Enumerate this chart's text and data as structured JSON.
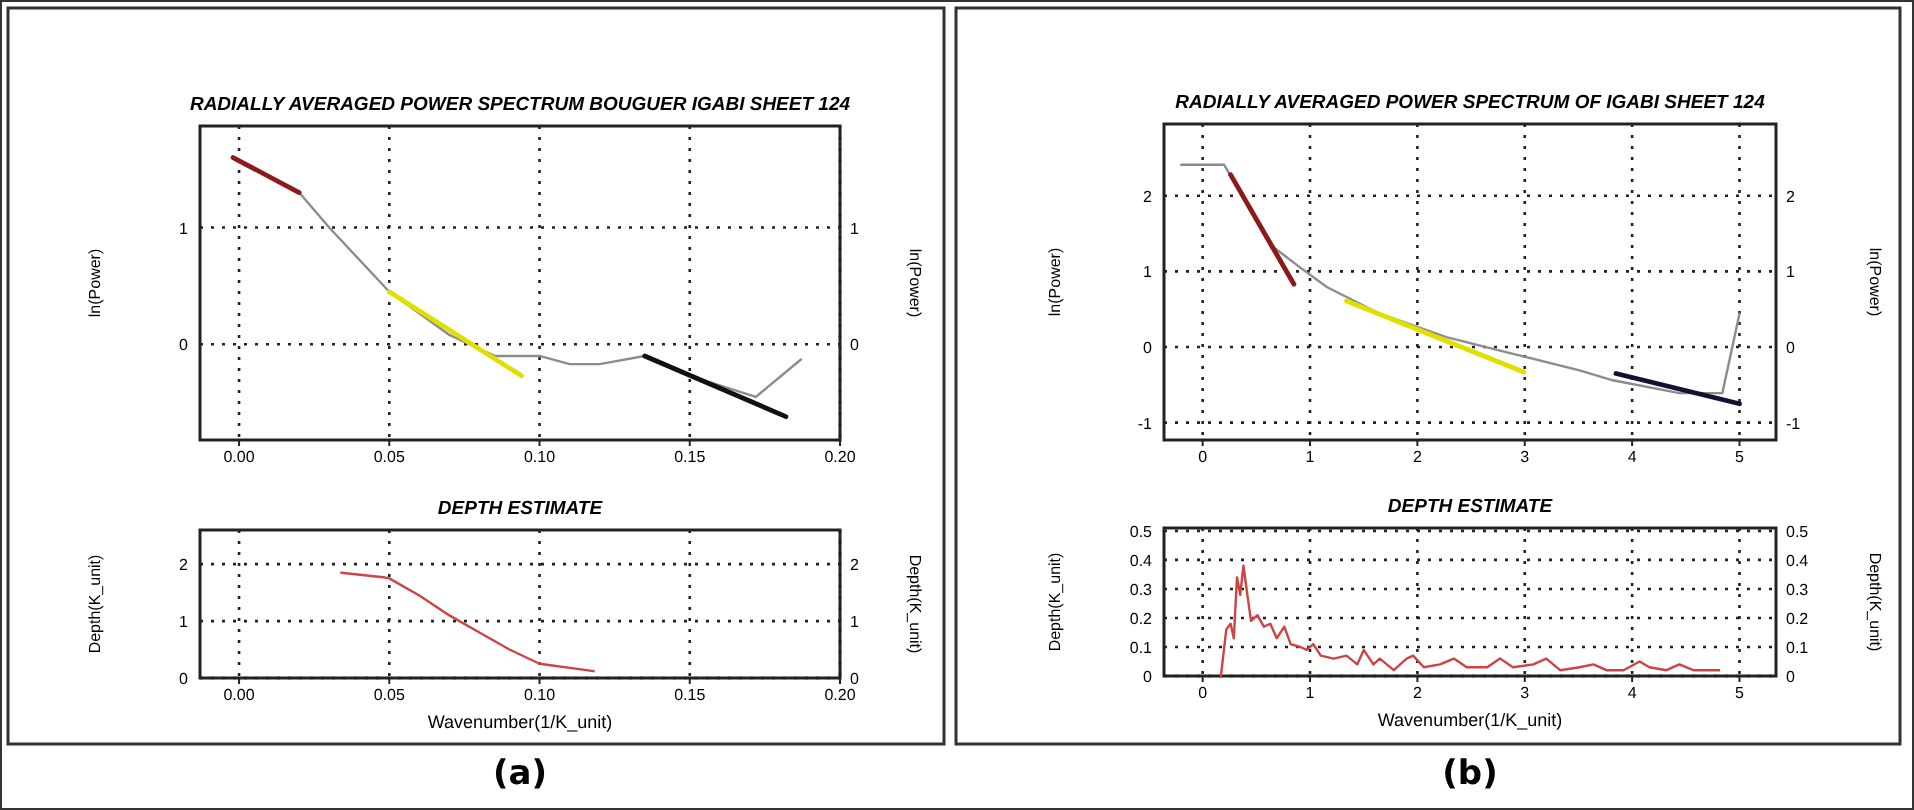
{
  "chart_data": [
    {
      "type": "line",
      "title": "RADIALLY AVERAGED POWER SPECTRUM BOUGUER IGABI SHEET 124",
      "ylabel": "ln(Power)",
      "y2label": "ln(Power)",
      "xlim": [
        -0.013,
        0.2
      ],
      "xticks": [
        {
          "value": 0,
          "label": "0.00"
        },
        0.05,
        {
          "value": 0.1,
          "label": "0.10"
        },
        0.15,
        {
          "value": 0.2,
          "label": "0.20"
        }
      ],
      "ylim": [
        -0.82,
        1.87
      ],
      "yticks": [
        0,
        1
      ],
      "y2lim": [
        -0.82,
        1.87
      ],
      "y2ticks": [
        0,
        1
      ],
      "grid": true,
      "marker": "none",
      "series": [
        {
          "color": "#8c8c8c",
          "x": [
            0.02,
            0.03,
            0.05,
            0.07,
            0.085,
            0.1,
            0.11,
            0.12,
            0.135,
            0.15,
            0.172,
            0.187
          ],
          "values": [
            1.3,
            1.0,
            0.45,
            0.08,
            -0.1,
            -0.1,
            -0.17,
            -0.17,
            -0.1,
            -0.27,
            -0.45,
            -0.13
          ]
        },
        {
          "color": "#8b1a1a",
          "x": [
            -0.002,
            0.02
          ],
          "values": [
            1.6,
            1.3
          ]
        },
        {
          "color": "#e0e000",
          "x": [
            0.05,
            0.094
          ],
          "values": [
            0.45,
            -0.27
          ]
        },
        {
          "color": "#111111",
          "x": [
            0.135,
            0.182
          ],
          "values": [
            -0.1,
            -0.62
          ]
        }
      ]
    },
    {
      "type": "line",
      "title": "DEPTH ESTIMATE",
      "xlabel": "Wavenumber(1/K_unit)",
      "ylabel": "Depth(K_unit)",
      "y2label": "Depth(K_unit)",
      "xlim": [
        -0.013,
        0.2
      ],
      "xticks": [
        {
          "value": 0,
          "label": "0.00"
        },
        0.05,
        {
          "value": 0.1,
          "label": "0.10"
        },
        0.15,
        {
          "value": 0.2,
          "label": "0.20"
        }
      ],
      "ylim": [
        0,
        2.6
      ],
      "yticks": [
        0,
        1,
        2
      ],
      "y2lim": [
        0,
        2.6
      ],
      "y2ticks": [
        0,
        1,
        2
      ],
      "grid": true,
      "marker": "none",
      "annotations": [
        "(a)"
      ],
      "series": [
        {
          "color": "#cc4444",
          "x": [
            0.034,
            0.048,
            0.05,
            0.06,
            0.07,
            0.08,
            0.09,
            0.1,
            0.118
          ],
          "values": [
            1.85,
            1.77,
            1.75,
            1.45,
            1.1,
            0.8,
            0.5,
            0.25,
            0.12
          ]
        }
      ]
    },
    {
      "type": "line",
      "title": "RADIALLY AVERAGED POWER SPECTRUM OF IGABI SHEET 124",
      "ylabel": "ln(Power)",
      "y2label": "ln(Power)",
      "xlim": [
        -0.36,
        5.34
      ],
      "xticks": [
        0,
        1,
        2,
        3,
        4,
        5
      ],
      "ylim": [
        -1.23,
        2.95
      ],
      "yticks": [
        -1,
        0,
        1,
        2
      ],
      "y2lim": [
        -1.23,
        2.95
      ],
      "y2ticks": [
        -1,
        0,
        1,
        2
      ],
      "grid": true,
      "marker": "none",
      "series": [
        {
          "color": "#8c8c8c",
          "x": [
            -0.2,
            0.2,
            0.66,
            0.91,
            1.16,
            1.65,
            2.27,
            2.89,
            3.51,
            3.82,
            4.44,
            4.84,
            5.0
          ],
          "values": [
            2.41,
            2.41,
            1.32,
            1.05,
            0.79,
            0.44,
            0.13,
            -0.09,
            -0.31,
            -0.44,
            -0.61,
            -0.61,
            0.44
          ]
        },
        {
          "color": "#8b1a1a",
          "x": [
            0.26,
            0.85
          ],
          "values": [
            2.28,
            0.83
          ]
        },
        {
          "color": "#e0e000",
          "x": [
            1.34,
            2.99
          ],
          "values": [
            0.61,
            -0.33
          ]
        },
        {
          "color": "#111133",
          "x": [
            3.85,
            5.0
          ],
          "values": [
            -0.35,
            -0.75
          ]
        }
      ]
    },
    {
      "type": "line",
      "title": "DEPTH ESTIMATE",
      "xlabel": "Wavenumber(1/K_unit)",
      "ylabel": "Depth(K_unit)",
      "y2label": "Depth(K_unit)",
      "xlim": [
        -0.36,
        5.34
      ],
      "xticks": [
        0,
        1,
        2,
        3,
        4,
        5
      ],
      "ylim": [
        0,
        0.51
      ],
      "yticks": [
        0,
        0.1,
        0.2,
        0.3,
        0.4,
        0.5
      ],
      "y2lim": [
        0,
        0.51
      ],
      "y2ticks": [
        0,
        0.1,
        0.2,
        0.3,
        0.4,
        0.5
      ],
      "grid": true,
      "marker": "none",
      "annotations": [
        "(b)"
      ],
      "series": [
        {
          "color": "#cc4444",
          "x": [
            0.17,
            0.22,
            0.26,
            0.29,
            0.32,
            0.35,
            0.38,
            0.42,
            0.45,
            0.51,
            0.57,
            0.63,
            0.69,
            0.76,
            0.82,
            0.91,
            0.97,
            1.03,
            1.1,
            1.22,
            1.34,
            1.44,
            1.5,
            1.59,
            1.65,
            1.78,
            1.9,
            1.96,
            2.06,
            2.21,
            2.34,
            2.46,
            2.65,
            2.77,
            2.89,
            3.08,
            3.2,
            3.33,
            3.51,
            3.64,
            3.76,
            3.92,
            4.07,
            4.16,
            4.32,
            4.44,
            4.57,
            4.75,
            4.81
          ],
          "values": [
            0,
            0.16,
            0.18,
            0.13,
            0.34,
            0.28,
            0.38,
            0.27,
            0.19,
            0.21,
            0.17,
            0.18,
            0.13,
            0.17,
            0.11,
            0.1,
            0.09,
            0.11,
            0.07,
            0.06,
            0.07,
            0.04,
            0.09,
            0.04,
            0.06,
            0.02,
            0.06,
            0.07,
            0.03,
            0.04,
            0.06,
            0.03,
            0.03,
            0.06,
            0.03,
            0.04,
            0.06,
            0.02,
            0.03,
            0.04,
            0.02,
            0.02,
            0.05,
            0.03,
            0.02,
            0.04,
            0.02,
            0.02,
            0.02
          ]
        }
      ]
    }
  ]
}
